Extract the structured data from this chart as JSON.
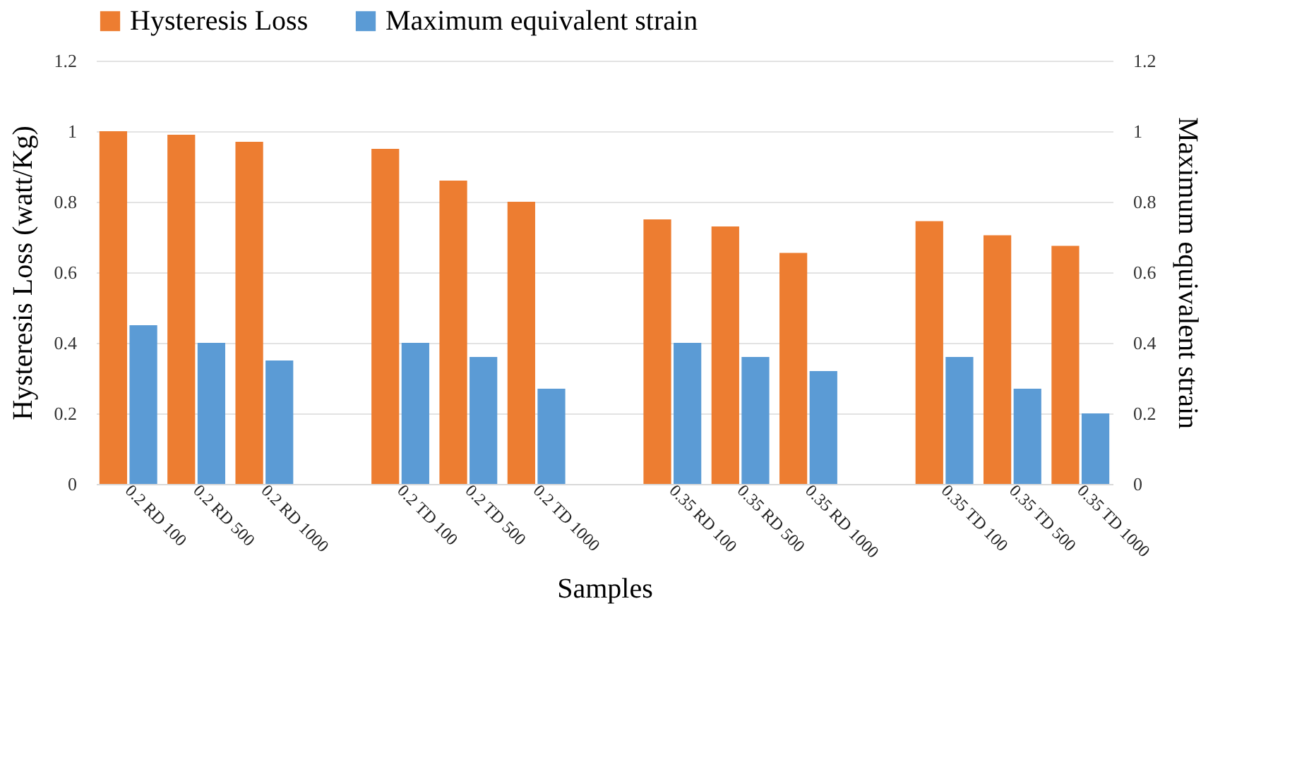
{
  "chart_data": {
    "type": "bar",
    "xlabel": "Samples",
    "ylabel": "Hysteresis Loss (watt/Kg)",
    "y2label": "Maximum equivalent strain",
    "categories": [
      "0.2 RD 100",
      "0.2 RD 500",
      "0.2 RD 1000",
      null,
      "0.2 TD 100",
      "0.2 TD 500",
      "0.2 TD 1000",
      null,
      "0.35 RD 100",
      "0.35 RD 500",
      "0.35 RD 1000",
      null,
      "0.35 TD 100",
      "0.35 TD 500",
      "0.35 TD 1000"
    ],
    "series": [
      {
        "name": "Hysteresis Loss",
        "color": "#ed7d31",
        "values": [
          1.0,
          0.99,
          0.97,
          null,
          0.95,
          0.86,
          0.8,
          null,
          0.75,
          0.73,
          0.655,
          null,
          0.745,
          0.705,
          0.675
        ]
      },
      {
        "name": "Maximum equivalent strain",
        "color": "#5b9bd5",
        "axis": "y2",
        "values": [
          0.45,
          0.4,
          0.35,
          null,
          0.4,
          0.36,
          0.27,
          null,
          0.4,
          0.36,
          0.32,
          null,
          0.36,
          0.27,
          0.2
        ]
      }
    ],
    "ylim": [
      0,
      1.2
    ],
    "yticks": [
      0,
      0.2,
      0.4,
      0.6,
      0.8,
      1,
      1.2
    ],
    "y2lim": [
      0,
      1.2
    ],
    "y2ticks": [
      0,
      0.2,
      0.4,
      0.6,
      0.8,
      1,
      1.2
    ],
    "grid": "y",
    "legend": "top"
  }
}
